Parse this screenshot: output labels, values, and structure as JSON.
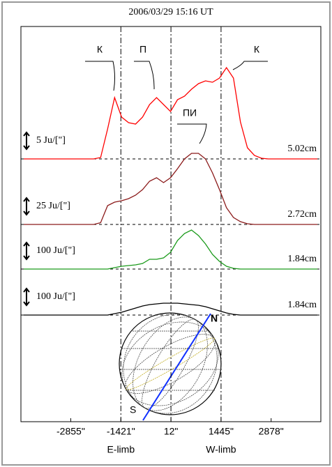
{
  "chart_data": {
    "type": "line",
    "title": "2006/03/29 15:16 UT",
    "x": [
      -4200,
      -4000,
      -3800,
      -3600,
      -3400,
      -3200,
      -3000,
      -2800,
      -2600,
      -2400,
      -2200,
      -2000,
      -1800,
      -1600,
      -1400,
      -1200,
      -1000,
      -800,
      -600,
      -400,
      -200,
      0,
      200,
      400,
      600,
      800,
      1000,
      1200,
      1400,
      1600,
      1800,
      2000,
      2200,
      2400,
      2600,
      2800,
      3000,
      3200,
      3400,
      3600,
      3800,
      4000,
      4200
    ],
    "xlim": [
      -4280,
      4300
    ],
    "xticks": [
      {
        "value": -2855,
        "label": "-2855\""
      },
      {
        "value": -1421,
        "label": "-1421\""
      },
      {
        "value": 12,
        "label": "12\""
      },
      {
        "value": 1445,
        "label": "1445\""
      },
      {
        "value": 2878,
        "label": "2878\""
      }
    ],
    "limb_labels": [
      "E-limb",
      "W-limb"
    ],
    "series": [
      {
        "name": "5.02cm",
        "scale_label": "5 Ju/[\"]",
        "color": "#ff0000",
        "values": [
          0,
          0,
          0,
          0,
          0,
          0,
          0,
          0,
          0,
          0,
          0,
          0.08,
          1.72,
          3.52,
          2.4,
          2.08,
          2.0,
          2.4,
          3.12,
          3.52,
          3.12,
          2.72,
          3.4,
          3.6,
          4.0,
          4.32,
          4.48,
          4.4,
          4.64,
          5.24,
          4.64,
          2.12,
          0.64,
          0.2,
          0.04,
          0,
          0,
          0,
          0,
          0,
          0,
          0,
          0
        ]
      },
      {
        "name": "2.72cm",
        "scale_label": "25 Ju/[\"]",
        "color": "#8b1a1a",
        "values": [
          0,
          0,
          0,
          0,
          0,
          0,
          0,
          0,
          0,
          0,
          0,
          0.1,
          1.08,
          1.28,
          1.36,
          1.48,
          1.68,
          2.0,
          2.48,
          2.68,
          2.4,
          2.68,
          3.2,
          3.76,
          4.08,
          4.08,
          3.76,
          2.96,
          2.0,
          0.96,
          0.4,
          0.16,
          0.04,
          0,
          0,
          0,
          0,
          0,
          0,
          0,
          0,
          0,
          0
        ]
      },
      {
        "name": "1.84cm",
        "scale_label": "100 Ju/[\"]",
        "color": "#1a9a1a",
        "values": [
          0,
          0,
          0,
          0,
          0,
          0,
          0,
          0,
          0,
          0,
          0,
          0,
          0,
          0.08,
          0.16,
          0.2,
          0.24,
          0.32,
          0.56,
          0.56,
          0.64,
          0.96,
          1.64,
          2.04,
          2.24,
          1.92,
          1.44,
          0.84,
          0.44,
          0.16,
          0.04,
          0,
          0,
          0,
          0,
          0,
          0,
          0,
          0,
          0,
          0,
          0,
          0
        ]
      },
      {
        "name": "1.84cm",
        "scale_label": "100 Ju/[\"]",
        "color": "#000000",
        "values": [
          0,
          0,
          0,
          0,
          0,
          0,
          0,
          0,
          0,
          0,
          0,
          0,
          0,
          0.08,
          0.16,
          0.28,
          0.4,
          0.52,
          0.6,
          0.64,
          0.68,
          0.68,
          0.68,
          0.64,
          0.6,
          0.56,
          0.48,
          0.36,
          0.24,
          0.12,
          0.04,
          0,
          0,
          0,
          0,
          0,
          0,
          0,
          0,
          0,
          0,
          0,
          0
        ]
      }
    ],
    "annotations": [
      "К",
      "П",
      "К",
      "ПИ"
    ],
    "disk_labels": [
      "N",
      "S"
    ]
  }
}
